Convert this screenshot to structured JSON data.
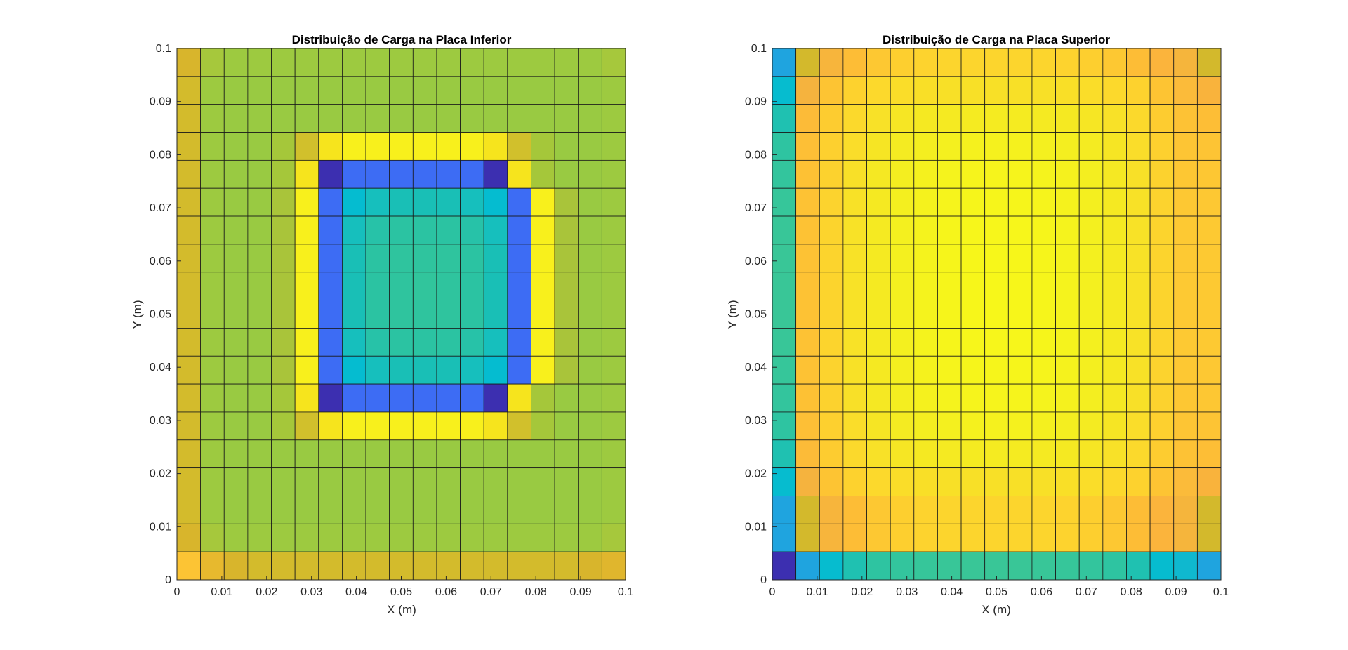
{
  "figure": {
    "background": "#ffffff"
  },
  "chart_data": [
    {
      "type": "heatmap",
      "title": "Distribuição de Carga na Placa Inferior",
      "xlabel": "X (m)",
      "ylabel": "Y (m)",
      "xlim": [
        0,
        0.1
      ],
      "ylim": [
        0,
        0.1
      ],
      "xticks": [
        "0",
        "0.01",
        "0.02",
        "0.03",
        "0.04",
        "0.05",
        "0.06",
        "0.07",
        "0.08",
        "0.09",
        "0.1"
      ],
      "yticks": [
        "0",
        "0.01",
        "0.02",
        "0.03",
        "0.04",
        "0.05",
        "0.06",
        "0.07",
        "0.08",
        "0.09",
        "0.1"
      ],
      "grid_size": [
        19,
        19
      ],
      "cell_colors_rows_top_to_bottom": [
        [
          "#d8b52c",
          "#a6c83c",
          "#9dca40",
          "#9dca40",
          "#9dca40",
          "#9dca40",
          "#9dca40",
          "#9dca40",
          "#9dca40",
          "#9dca40",
          "#9dca40",
          "#9dca40",
          "#9dca40",
          "#9dca40",
          "#9dca40",
          "#9dca40",
          "#9dca40",
          "#9dca40",
          "#a6c83c"
        ],
        [
          "#d3bb2c",
          "#9dca40",
          "#99ca42",
          "#99ca42",
          "#99ca42",
          "#99ca42",
          "#99ca42",
          "#99ca42",
          "#99ca42",
          "#99ca42",
          "#99ca42",
          "#99ca42",
          "#99ca42",
          "#99ca42",
          "#99ca42",
          "#99ca42",
          "#99ca42",
          "#99ca42",
          "#9dca40"
        ],
        [
          "#d3bb2c",
          "#9dca40",
          "#99ca42",
          "#99ca42",
          "#99ca42",
          "#99ca42",
          "#99ca42",
          "#99ca42",
          "#99ca42",
          "#99ca42",
          "#99ca42",
          "#99ca42",
          "#99ca42",
          "#99ca42",
          "#99ca42",
          "#99ca42",
          "#99ca42",
          "#99ca42",
          "#9dca40"
        ],
        [
          "#d3bb2c",
          "#9dca40",
          "#99ca42",
          "#99ca42",
          "#a5c73a",
          "#d1c02c",
          "#f6e41d",
          "#f8f01c",
          "#f8f01c",
          "#f8f01c",
          "#f8f01c",
          "#f8f01c",
          "#f8f01c",
          "#f6e41d",
          "#d1c02c",
          "#a5c73a",
          "#99ca42",
          "#99ca42",
          "#9dca40"
        ],
        [
          "#d3bb2c",
          "#9dca40",
          "#99ca42",
          "#99ca42",
          "#a5c73a",
          "#f6e41d",
          "#3c2fb0",
          "#3d6cf4",
          "#3d6cf4",
          "#3d6cf4",
          "#3d6cf4",
          "#3d6cf4",
          "#3d6cf4",
          "#3c2fb0",
          "#f6e41d",
          "#a5c73a",
          "#99ca42",
          "#99ca42",
          "#9dca40"
        ],
        [
          "#d3bb2c",
          "#9dca40",
          "#99ca42",
          "#99ca42",
          "#a9c43a",
          "#f8f01c",
          "#3d6cf4",
          "#05bcd0",
          "#16bfbd",
          "#19bfb6",
          "#19bfb6",
          "#19bfb6",
          "#16bfbd",
          "#05bcd0",
          "#3d6cf4",
          "#f8f01c",
          "#a9c43a",
          "#99ca42",
          "#9dca40"
        ],
        [
          "#d3bb2c",
          "#9dca40",
          "#99ca42",
          "#99ca42",
          "#a9c43a",
          "#f8f01c",
          "#3d6cf4",
          "#16bfbd",
          "#27c2a8",
          "#2bc3a2",
          "#2bc3a2",
          "#2bc3a2",
          "#27c2a8",
          "#16bfbd",
          "#3d6cf4",
          "#f8f01c",
          "#a9c43a",
          "#99ca42",
          "#9dca40"
        ],
        [
          "#d3bb2c",
          "#9dca40",
          "#99ca42",
          "#99ca42",
          "#a9c43a",
          "#f8f01c",
          "#3d6cf4",
          "#19bfb6",
          "#2bc3a2",
          "#2fc49e",
          "#2fc49e",
          "#2fc49e",
          "#2bc3a2",
          "#19bfb6",
          "#3d6cf4",
          "#f8f01c",
          "#a9c43a",
          "#99ca42",
          "#9dca40"
        ],
        [
          "#d3bb2c",
          "#9dca40",
          "#99ca42",
          "#99ca42",
          "#a9c43a",
          "#f8f01c",
          "#3d6cf4",
          "#19bfb6",
          "#2bc3a2",
          "#2fc49e",
          "#31c59c",
          "#2fc49e",
          "#2bc3a2",
          "#19bfb6",
          "#3d6cf4",
          "#f8f01c",
          "#a9c43a",
          "#99ca42",
          "#9dca40"
        ],
        [
          "#d3bb2c",
          "#9dca40",
          "#99ca42",
          "#99ca42",
          "#a9c43a",
          "#f8f01c",
          "#3d6cf4",
          "#19bfb6",
          "#2bc3a2",
          "#2fc49e",
          "#2fc49e",
          "#2fc49e",
          "#2bc3a2",
          "#19bfb6",
          "#3d6cf4",
          "#f8f01c",
          "#a9c43a",
          "#99ca42",
          "#9dca40"
        ],
        [
          "#d3bb2c",
          "#9dca40",
          "#99ca42",
          "#99ca42",
          "#a9c43a",
          "#f8f01c",
          "#3d6cf4",
          "#16bfbd",
          "#27c2a8",
          "#2bc3a2",
          "#2bc3a2",
          "#2bc3a2",
          "#27c2a8",
          "#16bfbd",
          "#3d6cf4",
          "#f8f01c",
          "#a9c43a",
          "#99ca42",
          "#9dca40"
        ],
        [
          "#d3bb2c",
          "#9dca40",
          "#99ca42",
          "#99ca42",
          "#a9c43a",
          "#f8f01c",
          "#3d6cf4",
          "#05bcd0",
          "#16bfbd",
          "#19bfb6",
          "#19bfb6",
          "#19bfb6",
          "#16bfbd",
          "#05bcd0",
          "#3d6cf4",
          "#f8f01c",
          "#a9c43a",
          "#99ca42",
          "#9dca40"
        ],
        [
          "#d3bb2c",
          "#9dca40",
          "#99ca42",
          "#99ca42",
          "#a5c73a",
          "#f6e41d",
          "#3c2fb0",
          "#3d6cf4",
          "#3d6cf4",
          "#3d6cf4",
          "#3d6cf4",
          "#3d6cf4",
          "#3d6cf4",
          "#3c2fb0",
          "#f6e41d",
          "#a5c73a",
          "#99ca42",
          "#99ca42",
          "#9dca40"
        ],
        [
          "#d3bb2c",
          "#9dca40",
          "#99ca42",
          "#99ca42",
          "#a5c73a",
          "#d1c02c",
          "#f6e41d",
          "#f8f01c",
          "#f8f01c",
          "#f8f01c",
          "#f8f01c",
          "#f8f01c",
          "#f8f01c",
          "#f6e41d",
          "#d1c02c",
          "#a5c73a",
          "#99ca42",
          "#99ca42",
          "#9dca40"
        ],
        [
          "#d3bb2c",
          "#9dca40",
          "#99ca42",
          "#99ca42",
          "#99ca42",
          "#99ca42",
          "#99ca42",
          "#99ca42",
          "#99ca42",
          "#99ca42",
          "#99ca42",
          "#99ca42",
          "#99ca42",
          "#99ca42",
          "#99ca42",
          "#99ca42",
          "#99ca42",
          "#99ca42",
          "#9dca40"
        ],
        [
          "#d3bb2c",
          "#9dca40",
          "#99ca42",
          "#99ca42",
          "#99ca42",
          "#99ca42",
          "#99ca42",
          "#99ca42",
          "#99ca42",
          "#99ca42",
          "#99ca42",
          "#99ca42",
          "#99ca42",
          "#99ca42",
          "#99ca42",
          "#99ca42",
          "#99ca42",
          "#99ca42",
          "#9dca40"
        ],
        [
          "#d3bb2c",
          "#9dca40",
          "#99ca42",
          "#99ca42",
          "#99ca42",
          "#99ca42",
          "#99ca42",
          "#99ca42",
          "#99ca42",
          "#99ca42",
          "#99ca42",
          "#99ca42",
          "#99ca42",
          "#99ca42",
          "#99ca42",
          "#99ca42",
          "#99ca42",
          "#99ca42",
          "#9dca40"
        ],
        [
          "#d8b52c",
          "#a6c83c",
          "#9dca40",
          "#9dca40",
          "#9dca40",
          "#9dca40",
          "#9dca40",
          "#9dca40",
          "#9dca40",
          "#9dca40",
          "#9dca40",
          "#9dca40",
          "#9dca40",
          "#9dca40",
          "#9dca40",
          "#9dca40",
          "#9dca40",
          "#9dca40",
          "#a6c83c"
        ],
        [
          "#fcc434",
          "#e7b92e",
          "#d8b52c",
          "#d3bb2c",
          "#d3bb2c",
          "#d3bb2c",
          "#d3bb2c",
          "#d3bb2c",
          "#d3bb2c",
          "#d3bb2c",
          "#d3bb2c",
          "#d3bb2c",
          "#d3bb2c",
          "#d3bb2c",
          "#d3bb2c",
          "#d3bb2c",
          "#d3bb2c",
          "#d8b52c",
          "#e0b62d"
        ]
      ]
    },
    {
      "type": "heatmap",
      "title": "Distribuição de Carga na Placa Superior",
      "xlabel": "X (m)",
      "ylabel": "Y (m)",
      "xlim": [
        0,
        0.1
      ],
      "ylim": [
        0,
        0.1
      ],
      "xticks": [
        "0",
        "0.01",
        "0.02",
        "0.03",
        "0.04",
        "0.05",
        "0.06",
        "0.07",
        "0.08",
        "0.09",
        "0.1"
      ],
      "yticks": [
        "0",
        "0.01",
        "0.02",
        "0.03",
        "0.04",
        "0.05",
        "0.06",
        "0.07",
        "0.08",
        "0.09",
        "0.1"
      ],
      "grid_size": [
        19,
        19
      ],
      "cell_colors_rows_top_to_bottom": [
        [
          "#1fa4df",
          "#d3b92c",
          "#f7b53c",
          "#fdbd36",
          "#fdc832",
          "#fdcf2f",
          "#fdd32e",
          "#fcd52d",
          "#fcd52d",
          "#fcd52d",
          "#fcd52d",
          "#fcd52d",
          "#fdd32e",
          "#fdcf2f",
          "#fdc832",
          "#fdbd36",
          "#fbb43c",
          "#f5b53c",
          "#d3b92c"
        ],
        [
          "#06bccf",
          "#f5b33e",
          "#fdc433",
          "#fdd22e",
          "#fcd92c",
          "#fadd29",
          "#f9df27",
          "#f8e027",
          "#f8e027",
          "#f8e027",
          "#f8e027",
          "#f8e027",
          "#f9df27",
          "#fadd29",
          "#fcd92c",
          "#fdd22e",
          "#fdc433",
          "#fbbb3a",
          "#f9b33c"
        ],
        [
          "#1fc1b1",
          "#fcbb38",
          "#fdcc30",
          "#fbd92c",
          "#f8e128",
          "#f6e624",
          "#f5e922",
          "#f5ea22",
          "#f5eb21",
          "#f5eb21",
          "#f5eb21",
          "#f5ea22",
          "#f5e922",
          "#f6e624",
          "#f8e128",
          "#fbd92c",
          "#fdcc30",
          "#fdc235",
          "#fdbe36"
        ],
        [
          "#2ec4a1",
          "#fdbf36",
          "#fdd02f",
          "#fadd2a",
          "#f6e524",
          "#f4eb22",
          "#f4ee20",
          "#f4f01f",
          "#f5f11e",
          "#f5f11e",
          "#f5f11e",
          "#f4f01f",
          "#f4ee20",
          "#f4eb22",
          "#f6e524",
          "#fadd2a",
          "#fdd02f",
          "#fdc534",
          "#fdc434"
        ],
        [
          "#33c59d",
          "#fdc134",
          "#fcd22e",
          "#f8e028",
          "#f5e823",
          "#f4ee20",
          "#f5f11e",
          "#f5f31d",
          "#f6f41c",
          "#f6f41c",
          "#f6f41c",
          "#f5f31d",
          "#f5f11e",
          "#f4ee20",
          "#f5e823",
          "#f8e028",
          "#fcd22e",
          "#fdc733",
          "#fdc733"
        ],
        [
          "#36c69a",
          "#fdc234",
          "#fcd32e",
          "#f8e127",
          "#f5e922",
          "#f4ef1f",
          "#f5f21d",
          "#f6f41c",
          "#f6f51b",
          "#f6f51b",
          "#f6f51b",
          "#f6f41c",
          "#f5f21d",
          "#f4ef1f",
          "#f5e922",
          "#f8e127",
          "#fcd32e",
          "#fdc833",
          "#fdc833"
        ],
        [
          "#38c698",
          "#fdc234",
          "#fcd42d",
          "#f8e227",
          "#f5ea22",
          "#f4f01f",
          "#f5f31d",
          "#f6f51b",
          "#f7f61b",
          "#f7f61b",
          "#f7f61b",
          "#f6f51b",
          "#f5f31d",
          "#f4f01f",
          "#f5ea22",
          "#f8e227",
          "#fcd42d",
          "#fdc933",
          "#fdc932"
        ],
        [
          "#39c697",
          "#fdc234",
          "#fcd42d",
          "#f8e227",
          "#f5ea22",
          "#f4f01f",
          "#f5f31d",
          "#f6f51b",
          "#f7f61a",
          "#f7f71a",
          "#f7f61a",
          "#f6f51b",
          "#f5f31d",
          "#f4f01f",
          "#f5ea22",
          "#f8e227",
          "#fcd42d",
          "#fdc933",
          "#fdc932"
        ],
        [
          "#39c697",
          "#fdc234",
          "#fcd42d",
          "#f8e227",
          "#f5ea22",
          "#f4f01f",
          "#f5f31d",
          "#f6f51b",
          "#f7f61a",
          "#f7f71a",
          "#f7f61a",
          "#f6f51b",
          "#f5f31d",
          "#f4f01f",
          "#f5ea22",
          "#f8e227",
          "#fcd42d",
          "#fdc933",
          "#fdc932"
        ],
        [
          "#39c697",
          "#fdc234",
          "#fcd42d",
          "#f8e227",
          "#f5ea22",
          "#f4f01f",
          "#f5f31d",
          "#f6f51b",
          "#f7f61a",
          "#f7f71a",
          "#f7f61a",
          "#f6f51b",
          "#f5f31d",
          "#f4f01f",
          "#f5ea22",
          "#f8e227",
          "#fcd42d",
          "#fdc933",
          "#fdc932"
        ],
        [
          "#38c698",
          "#fdc234",
          "#fcd42d",
          "#f8e227",
          "#f5ea22",
          "#f4f01f",
          "#f5f31d",
          "#f6f51b",
          "#f7f61b",
          "#f7f61b",
          "#f7f61b",
          "#f6f51b",
          "#f5f31d",
          "#f4f01f",
          "#f5ea22",
          "#f8e227",
          "#fcd42d",
          "#fdc933",
          "#fdc932"
        ],
        [
          "#36c69a",
          "#fdc234",
          "#fcd32e",
          "#f8e127",
          "#f5e922",
          "#f4ef1f",
          "#f5f21d",
          "#f6f41c",
          "#f6f51b",
          "#f6f51b",
          "#f6f51b",
          "#f6f41c",
          "#f5f21d",
          "#f4ef1f",
          "#f5e922",
          "#f8e127",
          "#fcd32e",
          "#fdc833",
          "#fdc833"
        ],
        [
          "#33c59d",
          "#fdc134",
          "#fcd22e",
          "#f8e028",
          "#f5e823",
          "#f4ee20",
          "#f5f11e",
          "#f5f31d",
          "#f6f41c",
          "#f6f41c",
          "#f6f41c",
          "#f5f31d",
          "#f5f11e",
          "#f4ee20",
          "#f5e823",
          "#f8e028",
          "#fcd22e",
          "#fdc733",
          "#fdc733"
        ],
        [
          "#2ec4a1",
          "#fdbf36",
          "#fdd02f",
          "#fadd2a",
          "#f6e524",
          "#f4eb22",
          "#f4ee20",
          "#f4f01f",
          "#f5f11e",
          "#f5f11e",
          "#f5f11e",
          "#f4f01f",
          "#f4ee20",
          "#f4eb22",
          "#f6e524",
          "#fadd2a",
          "#fdd02f",
          "#fdc534",
          "#fdc434"
        ],
        [
          "#1fc1b1",
          "#fcbb38",
          "#fdcc30",
          "#fbd92c",
          "#f8e128",
          "#f6e624",
          "#f5e922",
          "#f5ea22",
          "#f5eb21",
          "#f5eb21",
          "#f5eb21",
          "#f5ea22",
          "#f5e922",
          "#f6e624",
          "#f8e128",
          "#fbd92c",
          "#fdcc30",
          "#fdc235",
          "#fdbe36"
        ],
        [
          "#06bccf",
          "#f5b33e",
          "#fdc433",
          "#fdd22e",
          "#fcd92c",
          "#fadd29",
          "#f9df27",
          "#f8e027",
          "#f8e027",
          "#f8e027",
          "#f8e027",
          "#f8e027",
          "#f9df27",
          "#fadd29",
          "#fcd92c",
          "#fdd22e",
          "#fdc433",
          "#fbbb3a",
          "#f9b33c"
        ],
        [
          "#1fa4df",
          "#d3b92c",
          "#f7b53c",
          "#fdbd36",
          "#fdc832",
          "#fdcf2f",
          "#fdd32e",
          "#fcd52d",
          "#fcd52d",
          "#fcd52d",
          "#fcd52d",
          "#fcd52d",
          "#fdd32e",
          "#fdcf2f",
          "#fdc832",
          "#fdbd36",
          "#fbb43c",
          "#f5b53c",
          "#d3b92c"
        ],
        [
          "#1fa4df",
          "#d3b92c",
          "#f7b53c",
          "#fdbd36",
          "#fdc832",
          "#fdcf2f",
          "#fdd32e",
          "#fcd52d",
          "#fcd52d",
          "#fcd52d",
          "#fcd52d",
          "#fcd52d",
          "#fdd32e",
          "#fdcf2f",
          "#fdc832",
          "#fdbd36",
          "#fbb43c",
          "#f5b53c",
          "#d3b92c"
        ],
        [
          "#3c2fb0",
          "#1fa4df",
          "#06bccf",
          "#1fc1b1",
          "#2ec4a1",
          "#33c59d",
          "#36c69a",
          "#38c698",
          "#39c697",
          "#39c697",
          "#39c697",
          "#38c698",
          "#36c69a",
          "#33c59d",
          "#2ec4a1",
          "#1fc1b1",
          "#06bccf",
          "#0fb8cf",
          "#1fa4df"
        ]
      ]
    }
  ]
}
